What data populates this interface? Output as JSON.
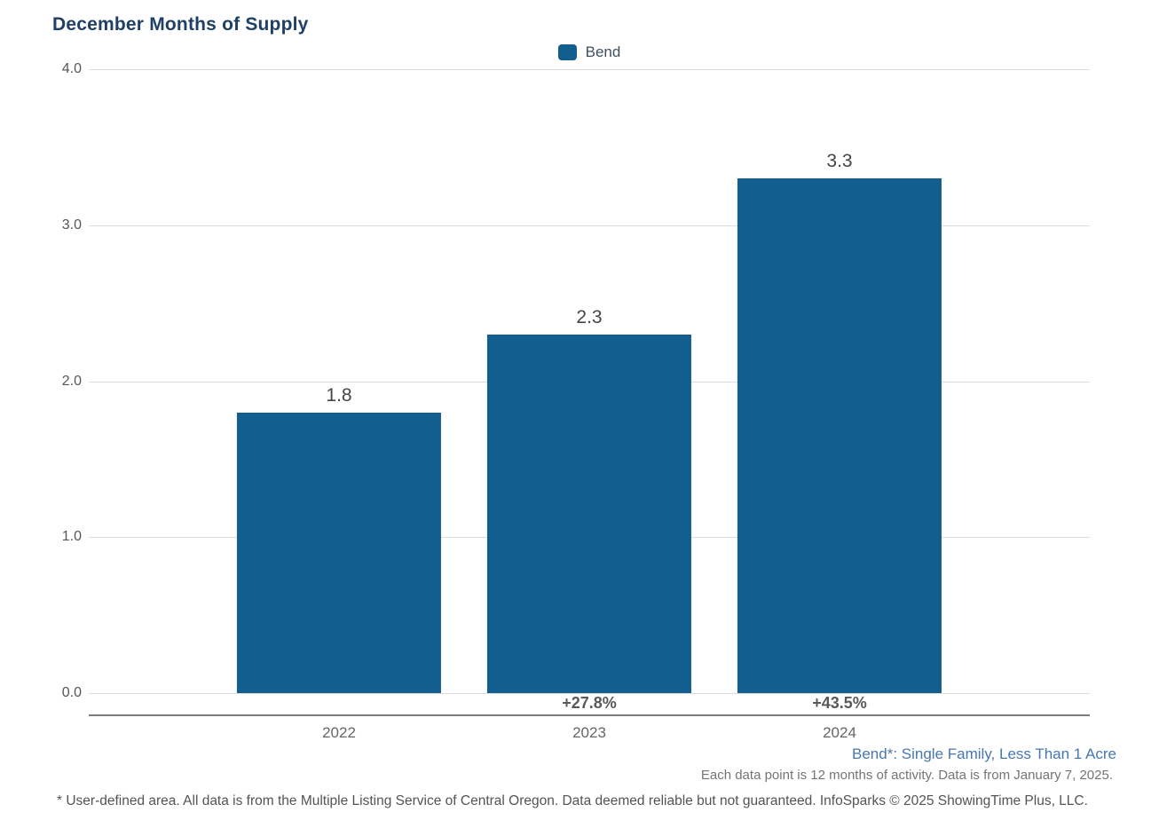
{
  "title": "December Months of Supply",
  "legend": {
    "label": "Bend",
    "color": "#115e8f",
    "swatch_icon": "series-color-swatch"
  },
  "chart_data": {
    "type": "bar",
    "title": "December Months of Supply",
    "categories": [
      "2022",
      "2023",
      "2024"
    ],
    "series": [
      {
        "name": "Bend",
        "values": [
          1.8,
          2.3,
          3.3
        ]
      }
    ],
    "values": [
      1.8,
      2.3,
      3.3
    ],
    "value_labels": [
      "1.8",
      "2.3",
      "3.3"
    ],
    "pct_change_labels": [
      "",
      "+27.8%",
      "+43.5%"
    ],
    "xlabel": "",
    "ylabel": "",
    "ylim": [
      0.0,
      4.0
    ],
    "yticks": [
      "4.0",
      "3.0",
      "2.0",
      "1.0",
      "0.0"
    ],
    "ytick_values": [
      4.0,
      3.0,
      2.0,
      1.0,
      0.0
    ],
    "grid": true,
    "legend_position": "top-center",
    "bar_color": "#115e8f"
  },
  "footnotes": {
    "series_definition": "Bend*: Single Family, Less Than 1 Acre",
    "data_note": "Each data point is 12 months of activity. Data is from January 7, 2025.",
    "disclaimer": "* User-defined area. All data is from the Multiple Listing Service of Central Oregon. Data deemed reliable but not guaranteed. InfoSparks © 2025 ShowingTime Plus, LLC."
  }
}
